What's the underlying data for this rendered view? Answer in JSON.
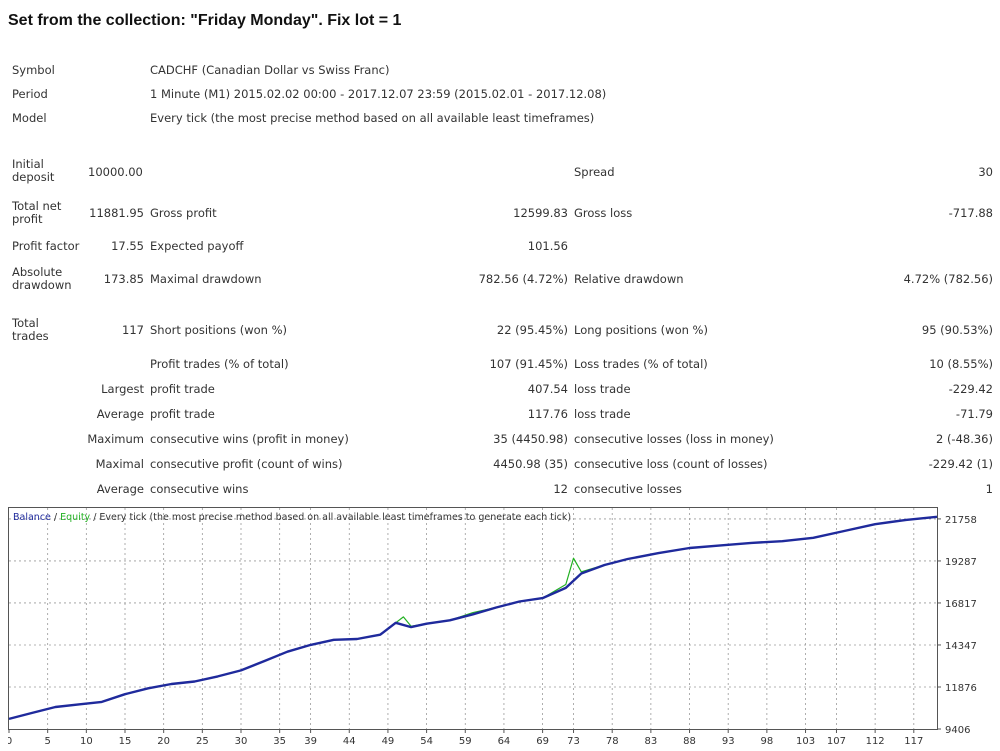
{
  "heading": "Set from the collection: \"Friday Monday\".   Fix lot = 1",
  "info": {
    "symbol_label": "Symbol",
    "symbol": "CADCHF (Canadian Dollar vs Swiss Franc)",
    "period_label": "Period",
    "period": "1 Minute (M1) 2015.02.02 00:00 - 2017.12.07 23:59 (2015.02.01 - 2017.12.08)",
    "model_label": "Model",
    "model": "Every tick (the most precise method based on all available least timeframes)"
  },
  "stats": {
    "initial_deposit_label": "Initial deposit",
    "initial_deposit": "10000.00",
    "spread_label": "Spread",
    "spread": "30",
    "total_net_profit_label": "Total net profit",
    "total_net_profit": "11881.95",
    "gross_profit_label": "Gross profit",
    "gross_profit": "12599.83",
    "gross_loss_label": "Gross loss",
    "gross_loss": "-717.88",
    "profit_factor_label": "Profit factor",
    "profit_factor": "17.55",
    "expected_payoff_label": "Expected payoff",
    "expected_payoff": "101.56",
    "absolute_drawdown_label": "Absolute drawdown",
    "absolute_drawdown": "173.85",
    "maximal_drawdown_label": "Maximal drawdown",
    "maximal_drawdown": "782.56 (4.72%)",
    "relative_drawdown_label": "Relative drawdown",
    "relative_drawdown": "4.72% (782.56)",
    "total_trades_label": "Total trades",
    "total_trades": "117",
    "short_positions_label": "Short positions (won %)",
    "short_positions": "22 (95.45%)",
    "long_positions_label": "Long positions (won %)",
    "long_positions": "95 (90.53%)",
    "profit_trades_label": "Profit trades (% of total)",
    "profit_trades": "107 (91.45%)",
    "loss_trades_label": "Loss trades (% of total)",
    "loss_trades": "10 (8.55%)",
    "largest_label": "Largest",
    "largest_profit_label": "profit trade",
    "largest_profit": "407.54",
    "largest_loss_label": "loss trade",
    "largest_loss": "-229.42",
    "average_label": "Average",
    "average_profit_label": "profit trade",
    "average_profit": "117.76",
    "average_loss_label": "loss trade",
    "average_loss": "-71.79",
    "maximum_label": "Maximum",
    "max_cons_wins_label": "consecutive wins (profit in money)",
    "max_cons_wins": "35 (4450.98)",
    "max_cons_losses_label": "consecutive losses (loss in money)",
    "max_cons_losses": "2 (-48.36)",
    "maximal_label": "Maximal",
    "maximal_cons_profit_label": "consecutive profit (count of wins)",
    "maximal_cons_profit": "4450.98 (35)",
    "maximal_cons_loss_label": "consecutive loss (count of losses)",
    "maximal_cons_loss": "-229.42 (1)",
    "average2_label": "Average",
    "avg_cons_wins_label": "consecutive wins",
    "avg_cons_wins": "12",
    "avg_cons_losses_label": "consecutive losses",
    "avg_cons_losses": "1"
  },
  "chart_data": {
    "type": "line",
    "legend_balance": "Balance",
    "legend_equity": "Equity",
    "legend_sep": " / ",
    "legend_rest": " / Every tick (the most precise method based on all available least timeframes to generate each tick)",
    "balance_color": "#1f2a9c",
    "equity_color": "#22b022",
    "xlim": [
      0,
      120
    ],
    "ylim": [
      9406,
      22400
    ],
    "grid": true,
    "x_ticks": [
      0,
      5,
      10,
      15,
      20,
      25,
      30,
      35,
      39,
      44,
      49,
      54,
      59,
      64,
      69,
      73,
      78,
      83,
      88,
      93,
      98,
      103,
      107,
      112,
      117
    ],
    "y_ticks": [
      9406,
      11876,
      14347,
      16817,
      19287,
      21758
    ],
    "series": [
      {
        "name": "Balance",
        "x": [
          0,
          3,
          6,
          9,
          12,
          15,
          18,
          21,
          24,
          27,
          30,
          33,
          36,
          39,
          42,
          45,
          48,
          50,
          52,
          54,
          57,
          60,
          63,
          66,
          69,
          72,
          74,
          77,
          80,
          84,
          88,
          92,
          96,
          100,
          104,
          108,
          112,
          116,
          120
        ],
        "values": [
          10000,
          10350,
          10700,
          10850,
          11000,
          11450,
          11800,
          12050,
          12200,
          12500,
          12850,
          13400,
          13950,
          14350,
          14650,
          14700,
          14950,
          15650,
          15400,
          15600,
          15800,
          16150,
          16550,
          16900,
          17100,
          17700,
          18550,
          19050,
          19400,
          19750,
          20050,
          20200,
          20350,
          20450,
          20650,
          21050,
          21450,
          21700,
          21880
        ]
      },
      {
        "name": "Equity",
        "x": [
          0,
          3,
          6,
          9,
          12,
          15,
          18,
          21,
          24,
          27,
          30,
          33,
          36,
          39,
          42,
          45,
          48,
          50,
          51,
          52,
          54,
          57,
          60,
          63,
          66,
          69,
          72,
          73,
          74,
          77,
          80,
          84,
          88,
          92,
          96,
          100,
          104,
          108,
          112,
          116,
          120
        ],
        "values": [
          10000,
          10350,
          10700,
          10850,
          11000,
          11450,
          11800,
          12050,
          12200,
          12500,
          12850,
          13400,
          13950,
          14350,
          14650,
          14700,
          14950,
          15650,
          16000,
          15450,
          15600,
          15800,
          16250,
          16550,
          16900,
          17100,
          17900,
          19450,
          18650,
          19050,
          19400,
          19750,
          20050,
          20200,
          20350,
          20450,
          20650,
          21050,
          21450,
          21700,
          21880
        ]
      }
    ]
  }
}
